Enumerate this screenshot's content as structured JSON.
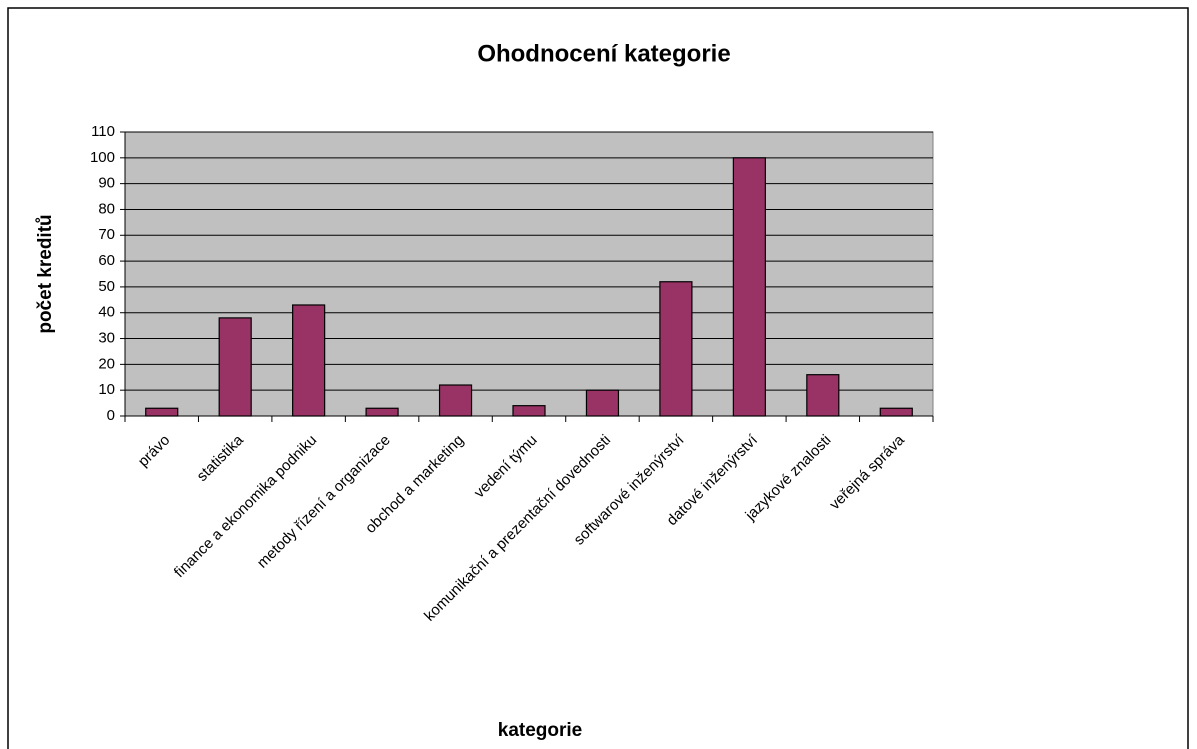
{
  "chart_data": {
    "type": "bar",
    "title": "Ohodnocení kategorie",
    "x_label": "kategorie",
    "y_label": "počet kreditů",
    "categories": [
      "právo",
      "statistika",
      "finance a ekonomika podniku",
      "metody řízení a organizace",
      "obchod a marketing",
      "vedení týmu",
      "komunikační a prezentační dovednosti",
      "softwarové inženýrství",
      "datové inženýrství",
      "jazykové znalosti",
      "veřejná správa"
    ],
    "values": [
      3,
      38,
      43,
      3,
      12,
      4,
      10,
      52,
      100,
      16,
      3
    ],
    "color": "#993366",
    "plot_color": "#c0c0c0",
    "ylim": [
      0,
      110
    ],
    "yticks": [
      0,
      10,
      20,
      30,
      40,
      50,
      60,
      70,
      80,
      90,
      100,
      110
    ],
    "grid": true
  }
}
